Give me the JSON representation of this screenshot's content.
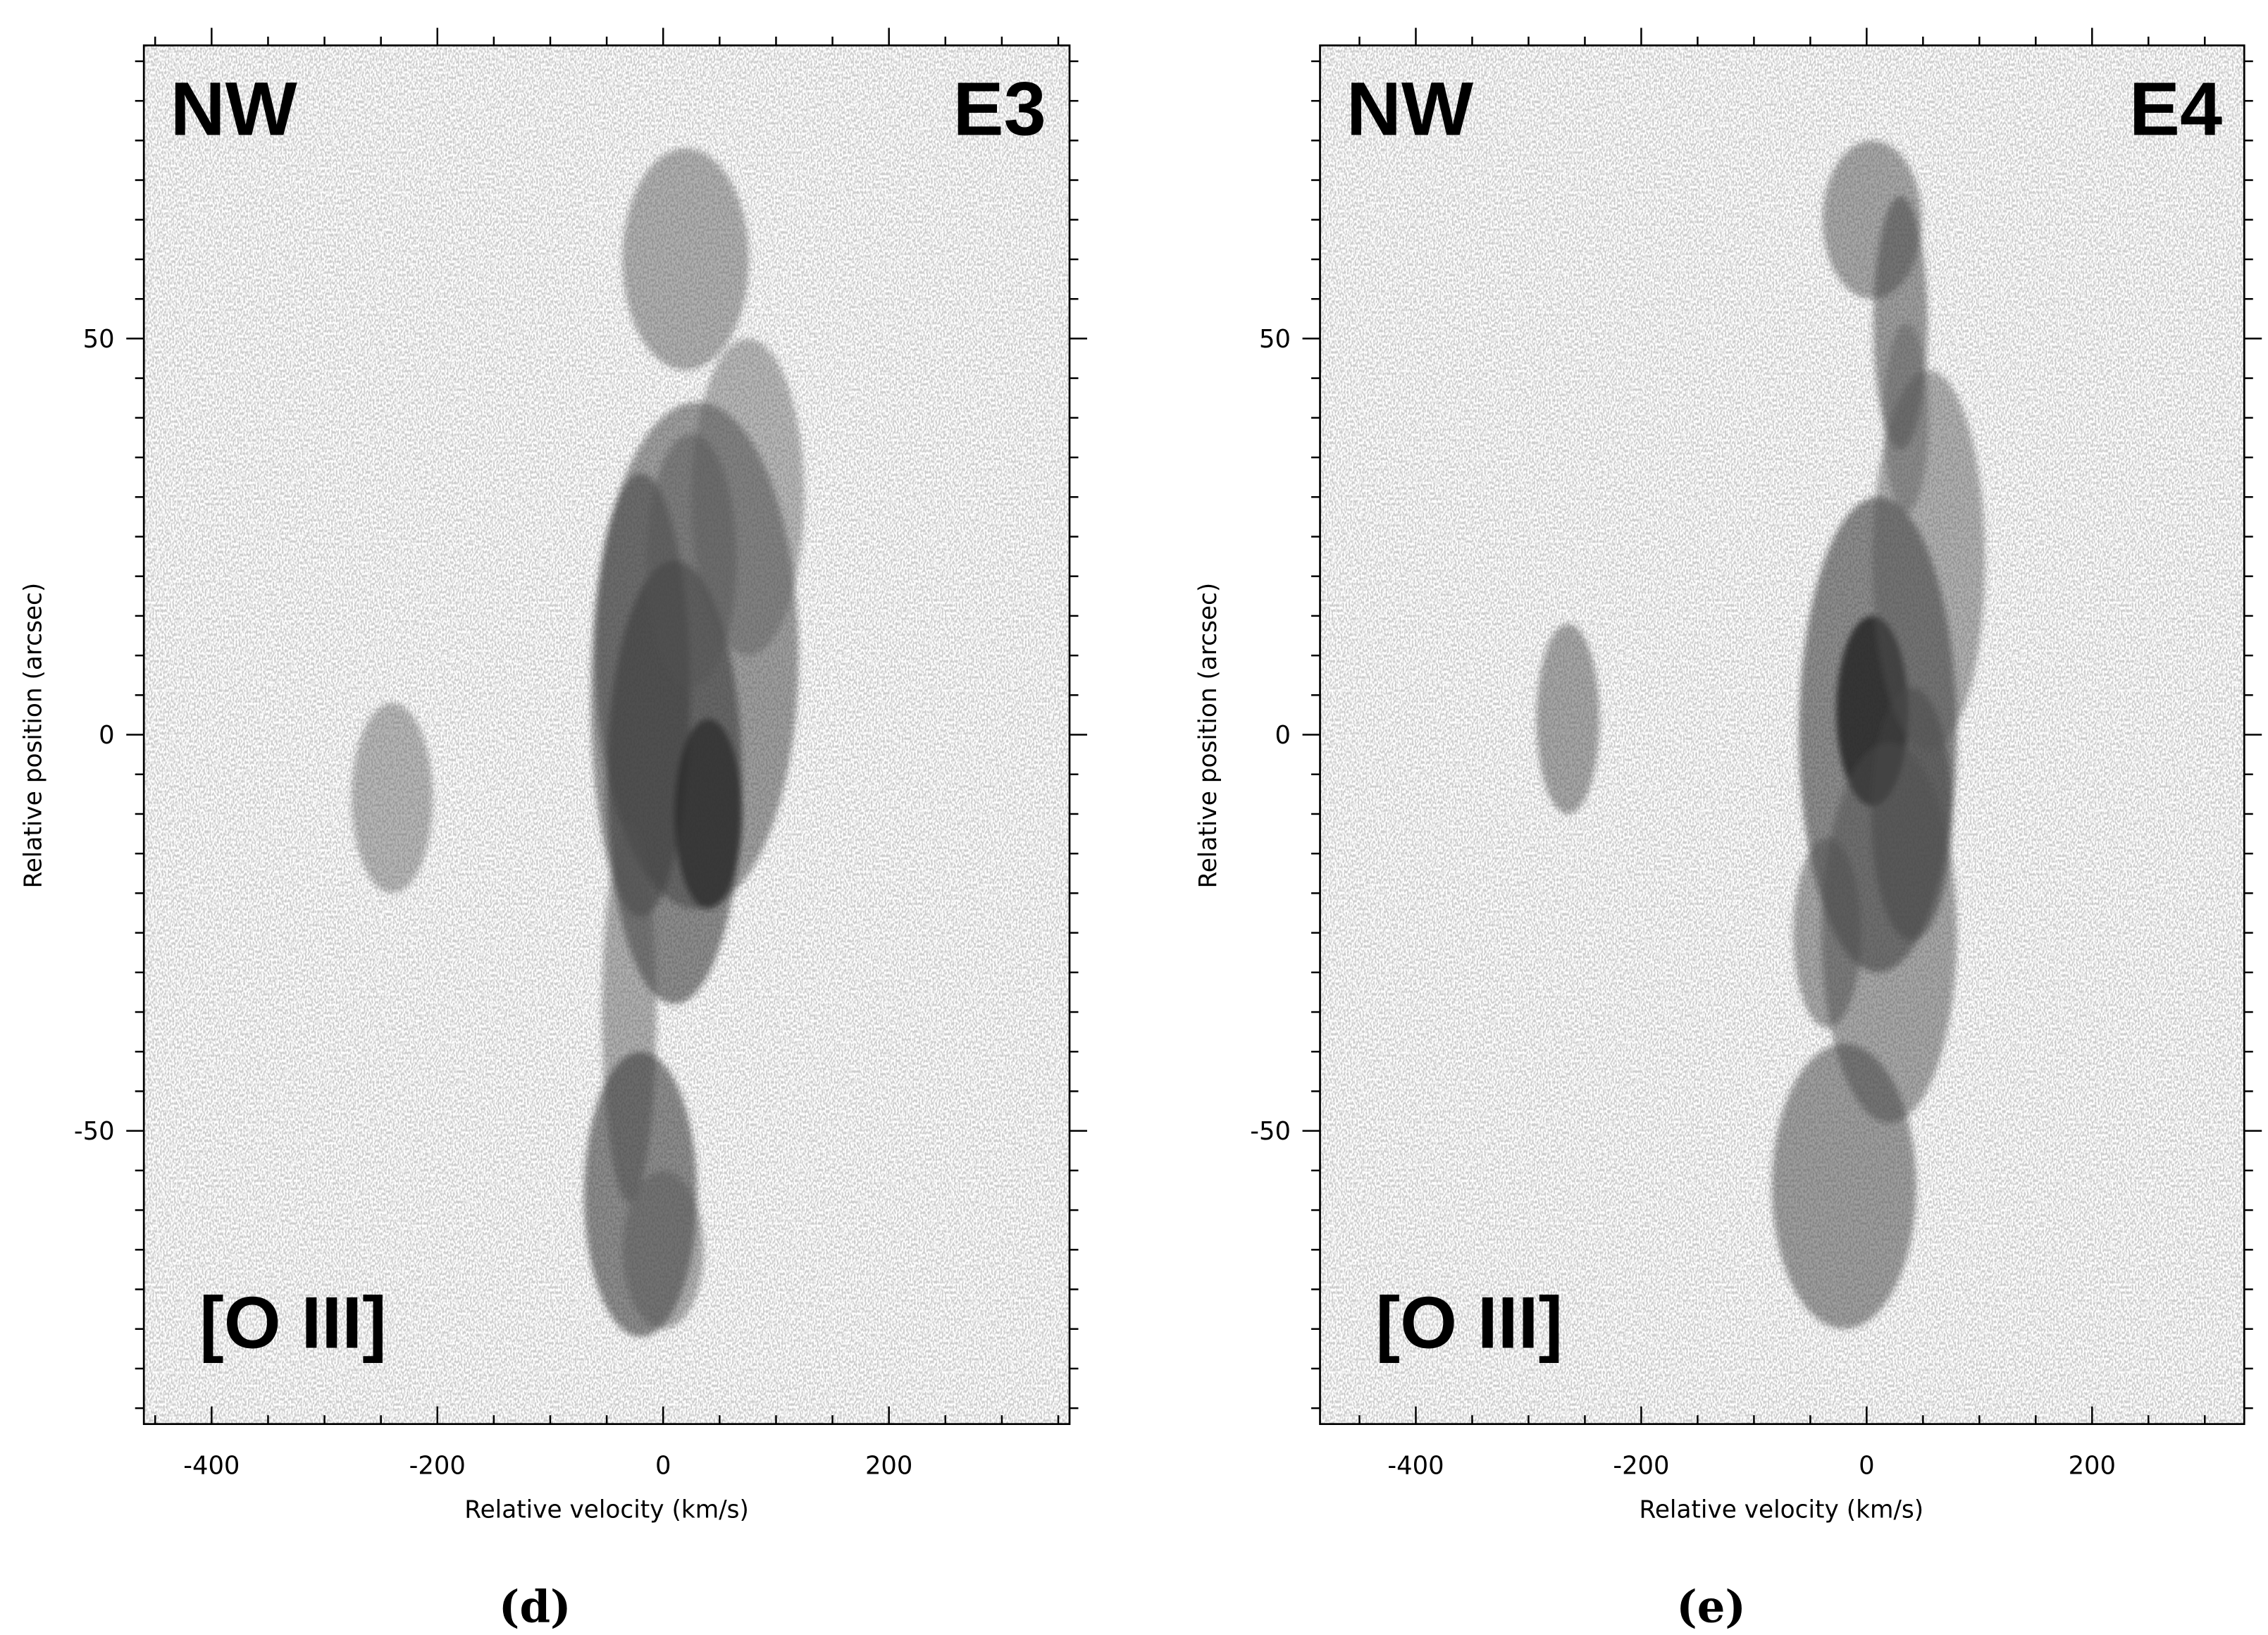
{
  "chart_data": [
    {
      "type": "heatmap",
      "subplot_label": "(d)",
      "corner_labels": {
        "top_left": "NW",
        "top_right": "E3",
        "bottom_left": "[O III]"
      },
      "xlabel": "Relative velocity (km/s)",
      "ylabel": "Relative position (arcsec)",
      "xlim": [
        -460,
        360
      ],
      "ylim": [
        -87,
        87
      ],
      "xticks": [
        -400,
        -200,
        0,
        200
      ],
      "xtick_labels": [
        "-400",
        "-200",
        "0",
        "200"
      ],
      "yticks": [
        -50,
        0,
        50
      ],
      "ytick_labels": [
        "-50",
        "0",
        "50"
      ],
      "colormap": "inverted grayscale (dark = strong emission)",
      "emission_features": [
        {
          "velocity": 20,
          "position": 60,
          "sigma_v": 28,
          "sigma_p": 7,
          "strength": 0.35
        },
        {
          "velocity": 30,
          "position": 10,
          "sigma_v": 45,
          "sigma_p": 16,
          "strength": 0.45
        },
        {
          "velocity": -20,
          "position": 5,
          "sigma_v": 22,
          "sigma_p": 14,
          "strength": 0.5
        },
        {
          "velocity": 40,
          "position": -10,
          "sigma_v": 15,
          "sigma_p": 6,
          "strength": 0.85
        },
        {
          "velocity": 10,
          "position": -6,
          "sigma_v": 30,
          "sigma_p": 14,
          "strength": 0.55
        },
        {
          "velocity": 75,
          "position": 30,
          "sigma_v": 25,
          "sigma_p": 10,
          "strength": 0.3
        },
        {
          "velocity": 25,
          "position": 22,
          "sigma_v": 20,
          "sigma_p": 8,
          "strength": 0.35
        },
        {
          "velocity": -30,
          "position": -35,
          "sigma_v": 12,
          "sigma_p": 12,
          "strength": 0.35
        },
        {
          "velocity": -20,
          "position": -58,
          "sigma_v": 25,
          "sigma_p": 9,
          "strength": 0.55
        },
        {
          "velocity": 0,
          "position": -65,
          "sigma_v": 18,
          "sigma_p": 5,
          "strength": 0.35
        },
        {
          "velocity": -240,
          "position": -8,
          "sigma_v": 18,
          "sigma_p": 6,
          "strength": 0.3
        }
      ]
    },
    {
      "type": "heatmap",
      "subplot_label": "(e)",
      "corner_labels": {
        "top_left": "NW",
        "top_right": "E4",
        "bottom_left": "[O III]"
      },
      "xlabel": "Relative velocity (km/s)",
      "ylabel": "Relative position (arcsec)",
      "xlim": [
        -485,
        335
      ],
      "ylim": [
        -87,
        87
      ],
      "xticks": [
        -400,
        -200,
        0,
        200
      ],
      "xtick_labels": [
        "-400",
        "-200",
        "0",
        "200"
      ],
      "yticks": [
        -50,
        0,
        50
      ],
      "ytick_labels": [
        "-50",
        "0",
        "50"
      ],
      "colormap": "inverted grayscale (dark = strong emission)",
      "emission_features": [
        {
          "velocity": 5,
          "position": 3,
          "sigma_v": 16,
          "sigma_p": 6,
          "strength": 1.0
        },
        {
          "velocity": 10,
          "position": 0,
          "sigma_v": 35,
          "sigma_p": 15,
          "strength": 0.55
        },
        {
          "velocity": 40,
          "position": -10,
          "sigma_v": 18,
          "sigma_p": 8,
          "strength": 0.5
        },
        {
          "velocity": 55,
          "position": 22,
          "sigma_v": 25,
          "sigma_p": 12,
          "strength": 0.35
        },
        {
          "velocity": 20,
          "position": -25,
          "sigma_v": 30,
          "sigma_p": 12,
          "strength": 0.4
        },
        {
          "velocity": -35,
          "position": -25,
          "sigma_v": 15,
          "sigma_p": 6,
          "strength": 0.4
        },
        {
          "velocity": -20,
          "position": -57,
          "sigma_v": 32,
          "sigma_p": 9,
          "strength": 0.45
        },
        {
          "velocity": 5,
          "position": 65,
          "sigma_v": 22,
          "sigma_p": 5,
          "strength": 0.4
        },
        {
          "velocity": 30,
          "position": 52,
          "sigma_v": 12,
          "sigma_p": 8,
          "strength": 0.45
        },
        {
          "velocity": 35,
          "position": 40,
          "sigma_v": 10,
          "sigma_p": 6,
          "strength": 0.3
        },
        {
          "velocity": -265,
          "position": 2,
          "sigma_v": 14,
          "sigma_p": 6,
          "strength": 0.4
        }
      ]
    }
  ]
}
